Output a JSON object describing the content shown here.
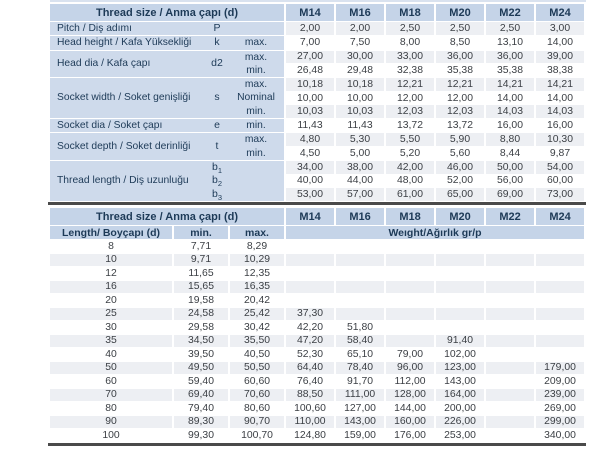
{
  "colors": {
    "header_blue": "#c5d4e8",
    "label_block_blue": "#cedaeb",
    "stripe_gray": "#edeff3",
    "top_strip": "#d9e2ef",
    "heavy_line": "#4a4a4a",
    "header_text": "#1d3a57",
    "number_text": "#3b3f44"
  },
  "sizes": [
    "M14",
    "M16",
    "M18",
    "M20",
    "M22",
    "M24"
  ],
  "table1": {
    "header_label": "Thread size / Anma çapı (d)",
    "groups": [
      {
        "label": "Pitch / Diş adımı",
        "symbols": [
          {
            "base": "P",
            "sub": ""
          }
        ],
        "subs": [
          ""
        ],
        "rows": [
          [
            "2,00",
            "2,00",
            "2,50",
            "2,50",
            "2,50",
            "3,00"
          ]
        ]
      },
      {
        "label": "Head height / Kafa Yüksekliği",
        "symbols": [
          {
            "base": "k",
            "sub": ""
          }
        ],
        "subs": [
          "max."
        ],
        "rows": [
          [
            "7,00",
            "7,50",
            "8,00",
            "8,50",
            "13,10",
            "14,00"
          ]
        ]
      },
      {
        "label": "Head dia / Kafa çapı",
        "symbols": [
          {
            "base": "d2",
            "sub": ""
          }
        ],
        "subs": [
          "max.",
          "min."
        ],
        "rows": [
          [
            "27,00",
            "30,00",
            "33,00",
            "36,00",
            "36,00",
            "39,00"
          ],
          [
            "26,48",
            "29,48",
            "32,38",
            "35,38",
            "35,38",
            "38,38"
          ]
        ]
      },
      {
        "label": "Socket width / Soket genişliği",
        "symbols": [
          {
            "base": "s",
            "sub": ""
          }
        ],
        "subs": [
          "max.",
          "Nominal",
          "min."
        ],
        "rows": [
          [
            "10,18",
            "10,18",
            "12,21",
            "12,21",
            "14,21",
            "14,21"
          ],
          [
            "10,00",
            "10,00",
            "12,00",
            "12,00",
            "14,00",
            "14,00"
          ],
          [
            "10,03",
            "10,03",
            "12,03",
            "12,03",
            "14,03",
            "14,03"
          ]
        ]
      },
      {
        "label": "Socket dia / Soket çapı",
        "symbols": [
          {
            "base": "e",
            "sub": ""
          }
        ],
        "subs": [
          "min."
        ],
        "rows": [
          [
            "11,43",
            "11,43",
            "13,72",
            "13,72",
            "16,00",
            "16,00"
          ]
        ]
      },
      {
        "label": "Socket depth / Soket derinliği",
        "symbols": [
          {
            "base": "t",
            "sub": ""
          }
        ],
        "subs": [
          "max.",
          "min."
        ],
        "rows": [
          [
            "4,80",
            "5,30",
            "5,50",
            "5,90",
            "8,80",
            "10,30"
          ],
          [
            "4,50",
            "5,00",
            "5,20",
            "5,60",
            "8,44",
            "9,87"
          ]
        ]
      },
      {
        "label": "Thread length / Diş uzunluğu",
        "symbols": [
          {
            "base": "b",
            "sub": "1"
          },
          {
            "base": "b",
            "sub": "2"
          },
          {
            "base": "b",
            "sub": "3"
          }
        ],
        "subs": [
          "",
          "",
          ""
        ],
        "rows": [
          [
            "34,00",
            "38,00",
            "42,00",
            "46,00",
            "50,00",
            "54,00"
          ],
          [
            "40,00",
            "44,00",
            "48,00",
            "52,00",
            "56,00",
            "60,00"
          ],
          [
            "53,00",
            "57,00",
            "61,00",
            "65,00",
            "69,00",
            "73,00"
          ]
        ]
      }
    ]
  },
  "table2": {
    "header_label": "Thread size / Anma çapı (d)",
    "length_label": "Length/ Boyçapı (d)",
    "min_label": "min.",
    "max_label": "max.",
    "weight_label": "Weıght/Ağırlık gr/p",
    "rows": [
      {
        "length": "8",
        "min": "7,71",
        "max": "8,29",
        "weights": [
          "",
          "",
          "",
          "",
          "",
          ""
        ]
      },
      {
        "length": "10",
        "min": "9,71",
        "max": "10,29",
        "weights": [
          "",
          "",
          "",
          "",
          "",
          ""
        ]
      },
      {
        "length": "12",
        "min": "11,65",
        "max": "12,35",
        "weights": [
          "",
          "",
          "",
          "",
          "",
          ""
        ]
      },
      {
        "length": "16",
        "min": "15,65",
        "max": "16,35",
        "weights": [
          "",
          "",
          "",
          "",
          "",
          ""
        ]
      },
      {
        "length": "20",
        "min": "19,58",
        "max": "20,42",
        "weights": [
          "",
          "",
          "",
          "",
          "",
          ""
        ]
      },
      {
        "length": "25",
        "min": "24,58",
        "max": "25,42",
        "weights": [
          "37,30",
          "",
          "",
          "",
          "",
          ""
        ]
      },
      {
        "length": "30",
        "min": "29,58",
        "max": "30,42",
        "weights": [
          "42,20",
          "51,80",
          "",
          "",
          "",
          ""
        ]
      },
      {
        "length": "35",
        "min": "34,50",
        "max": "35,50",
        "weights": [
          "47,20",
          "58,40",
          "",
          "91,40",
          "",
          ""
        ]
      },
      {
        "length": "40",
        "min": "39,50",
        "max": "40,50",
        "weights": [
          "52,30",
          "65,10",
          "79,00",
          "102,00",
          "",
          ""
        ]
      },
      {
        "length": "50",
        "min": "49,50",
        "max": "50,50",
        "weights": [
          "64,40",
          "78,40",
          "96,00",
          "123,00",
          "",
          "179,00"
        ]
      },
      {
        "length": "60",
        "min": "59,40",
        "max": "60,60",
        "weights": [
          "76,40",
          "91,70",
          "112,00",
          "143,00",
          "",
          "209,00"
        ]
      },
      {
        "length": "70",
        "min": "69,40",
        "max": "70,60",
        "weights": [
          "88,50",
          "111,00",
          "128,00",
          "164,00",
          "",
          "239,00"
        ]
      },
      {
        "length": "80",
        "min": "79,40",
        "max": "80,60",
        "weights": [
          "100,60",
          "127,00",
          "144,00",
          "200,00",
          "",
          "269,00"
        ]
      },
      {
        "length": "90",
        "min": "89,30",
        "max": "90,70",
        "weights": [
          "110,00",
          "143,00",
          "160,00",
          "226,00",
          "",
          "299,00"
        ]
      },
      {
        "length": "100",
        "min": "99,30",
        "max": "100,70",
        "weights": [
          "124,80",
          "159,00",
          "176,00",
          "253,00",
          "",
          "340,00"
        ]
      }
    ]
  }
}
